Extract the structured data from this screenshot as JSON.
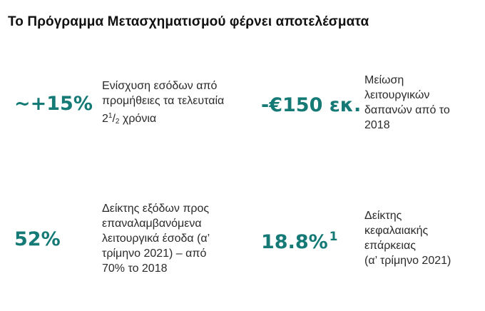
{
  "title": "Το Πρόγραμμα Μετασχηματισμού φέρνει αποτελέσματα",
  "stats": [
    {
      "value": "~+15%",
      "description_lines": [
        "Ενίσχυση εσόδων από",
        "προμήθειες τα τελευταία"
      ],
      "description_fraction": {
        "whole": "2",
        "numerator": "1",
        "denominator": "2",
        "suffix": " χρόνια"
      }
    },
    {
      "value": "-€150 εκ.",
      "description_lines": [
        "Μείωση",
        "λειτουργικών",
        "δαπανών από το",
        "2018"
      ]
    },
    {
      "value": "52%",
      "description_lines": [
        "Δείκτης εξόδων προς",
        "επαναλαμβανόμενα",
        "λειτουργικά έσοδα (α’",
        "τρίμηνο 2021) – από",
        "70% το 2018"
      ]
    },
    {
      "value": "18.8%",
      "footnote": "1",
      "description_lines": [
        "Δείκτης",
        "κεφαλαιακής",
        "επάρκειας",
        "(α’ τρίμηνο 2021)"
      ]
    }
  ]
}
